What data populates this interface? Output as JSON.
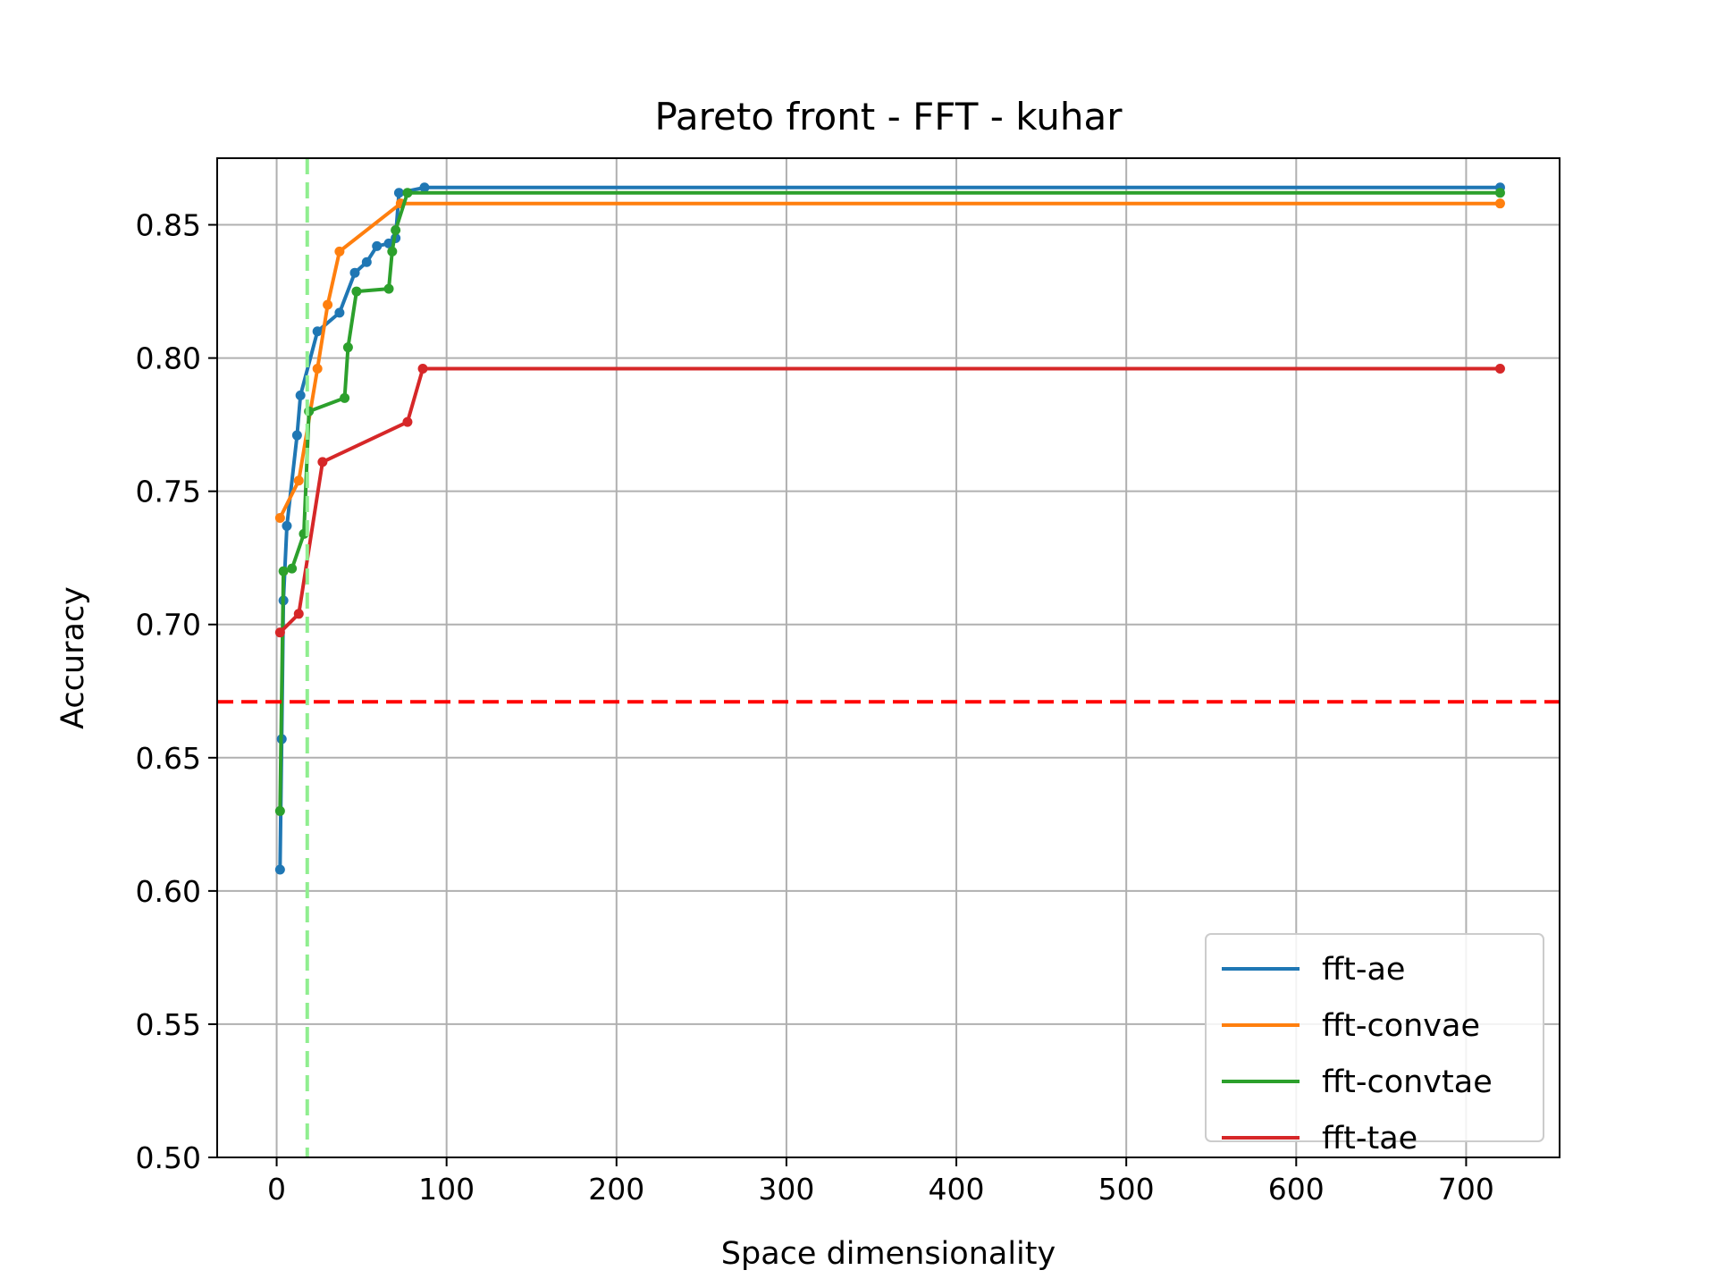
{
  "chart_data": {
    "type": "line",
    "title": "Pareto front - FFT - kuhar",
    "xlabel": "Space dimensionality",
    "ylabel": "Accuracy",
    "xlim": [
      -35,
      755
    ],
    "ylim": [
      0.5,
      0.875
    ],
    "xticks": [
      0,
      100,
      200,
      300,
      400,
      500,
      600,
      700
    ],
    "yticks": [
      0.5,
      0.55,
      0.6,
      0.65,
      0.7,
      0.75,
      0.8,
      0.85
    ],
    "ytick_labels": [
      "0.50",
      "0.55",
      "0.60",
      "0.65",
      "0.70",
      "0.75",
      "0.80",
      "0.85"
    ],
    "grid": true,
    "legend_position": "lower-right",
    "reference_lines": [
      {
        "orientation": "horizontal",
        "value": 0.671,
        "color": "#ff0000",
        "style": "dashed"
      },
      {
        "orientation": "vertical",
        "value": 18,
        "color": "#90ee90",
        "style": "dashed"
      }
    ],
    "series": [
      {
        "name": "fft-ae",
        "color": "#1f77b4",
        "x": [
          2,
          3,
          4,
          6,
          12,
          14,
          24,
          37,
          46,
          53,
          59,
          66,
          70,
          72,
          87,
          720
        ],
        "y": [
          0.608,
          0.657,
          0.709,
          0.737,
          0.771,
          0.786,
          0.81,
          0.817,
          0.832,
          0.836,
          0.842,
          0.843,
          0.845,
          0.862,
          0.864,
          0.864
        ]
      },
      {
        "name": "fft-convae",
        "color": "#ff7f0e",
        "x": [
          2,
          13,
          24,
          30,
          37,
          73,
          720
        ],
        "y": [
          0.74,
          0.754,
          0.796,
          0.82,
          0.84,
          0.858,
          0.858
        ]
      },
      {
        "name": "fft-convtae",
        "color": "#2ca02c",
        "x": [
          2,
          4,
          9,
          16,
          19,
          40,
          42,
          47,
          66,
          68,
          70,
          77,
          720
        ],
        "y": [
          0.63,
          0.72,
          0.721,
          0.734,
          0.78,
          0.785,
          0.804,
          0.825,
          0.826,
          0.84,
          0.848,
          0.862,
          0.862
        ]
      },
      {
        "name": "fft-tae",
        "color": "#d62728",
        "x": [
          2,
          13,
          27,
          77,
          86,
          720
        ],
        "y": [
          0.697,
          0.704,
          0.761,
          0.776,
          0.796,
          0.796
        ]
      }
    ]
  }
}
